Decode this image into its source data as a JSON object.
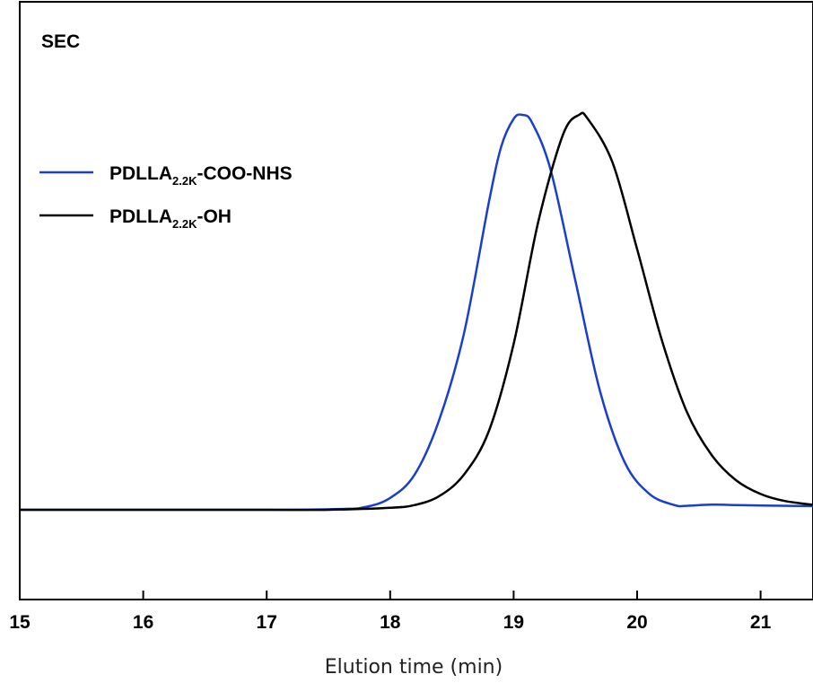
{
  "chart_data": {
    "type": "line",
    "title": "",
    "panel_label": "SEC",
    "xlabel": "Elution time (min)",
    "ylabel": "",
    "xlim": [
      15,
      21.5
    ],
    "ylim": [
      -0.22,
      1.0
    ],
    "x_ticks": [
      15,
      16,
      17,
      18,
      19,
      20,
      21
    ],
    "grid": false,
    "legend_placement": "top-left",
    "series": [
      {
        "name_parts": [
          "PDLLA",
          "2.2K",
          "-COO-NHS"
        ],
        "color": "#1a3fcc",
        "x": [
          15.0,
          16.0,
          17.0,
          17.6,
          17.8,
          18.0,
          18.2,
          18.4,
          18.6,
          18.8,
          18.9,
          19.0,
          19.07,
          19.15,
          19.3,
          19.5,
          19.7,
          19.9,
          20.1,
          20.3,
          20.4,
          20.6,
          20.8,
          21.0,
          21.5
        ],
        "y": [
          0.0,
          0.0,
          0.0,
          0.002,
          0.007,
          0.03,
          0.09,
          0.23,
          0.45,
          0.78,
          0.92,
          0.99,
          1.0,
          0.98,
          0.86,
          0.58,
          0.3,
          0.12,
          0.04,
          0.012,
          0.01,
          0.013,
          0.012,
          0.011,
          0.009
        ]
      },
      {
        "name_parts": [
          "PDLLA",
          "2.2K",
          "-OH"
        ],
        "color": "#000000",
        "x": [
          15.0,
          16.0,
          17.0,
          17.5,
          18.0,
          18.2,
          18.4,
          18.6,
          18.8,
          19.0,
          19.2,
          19.4,
          19.53,
          19.6,
          19.8,
          20.0,
          20.2,
          20.4,
          20.6,
          20.8,
          21.0,
          21.2,
          21.5
        ],
        "y": [
          0.0,
          0.0,
          0.0,
          0.0,
          0.005,
          0.012,
          0.035,
          0.09,
          0.2,
          0.42,
          0.73,
          0.95,
          1.0,
          0.99,
          0.88,
          0.66,
          0.43,
          0.25,
          0.14,
          0.075,
          0.04,
          0.022,
          0.01
        ]
      }
    ]
  }
}
